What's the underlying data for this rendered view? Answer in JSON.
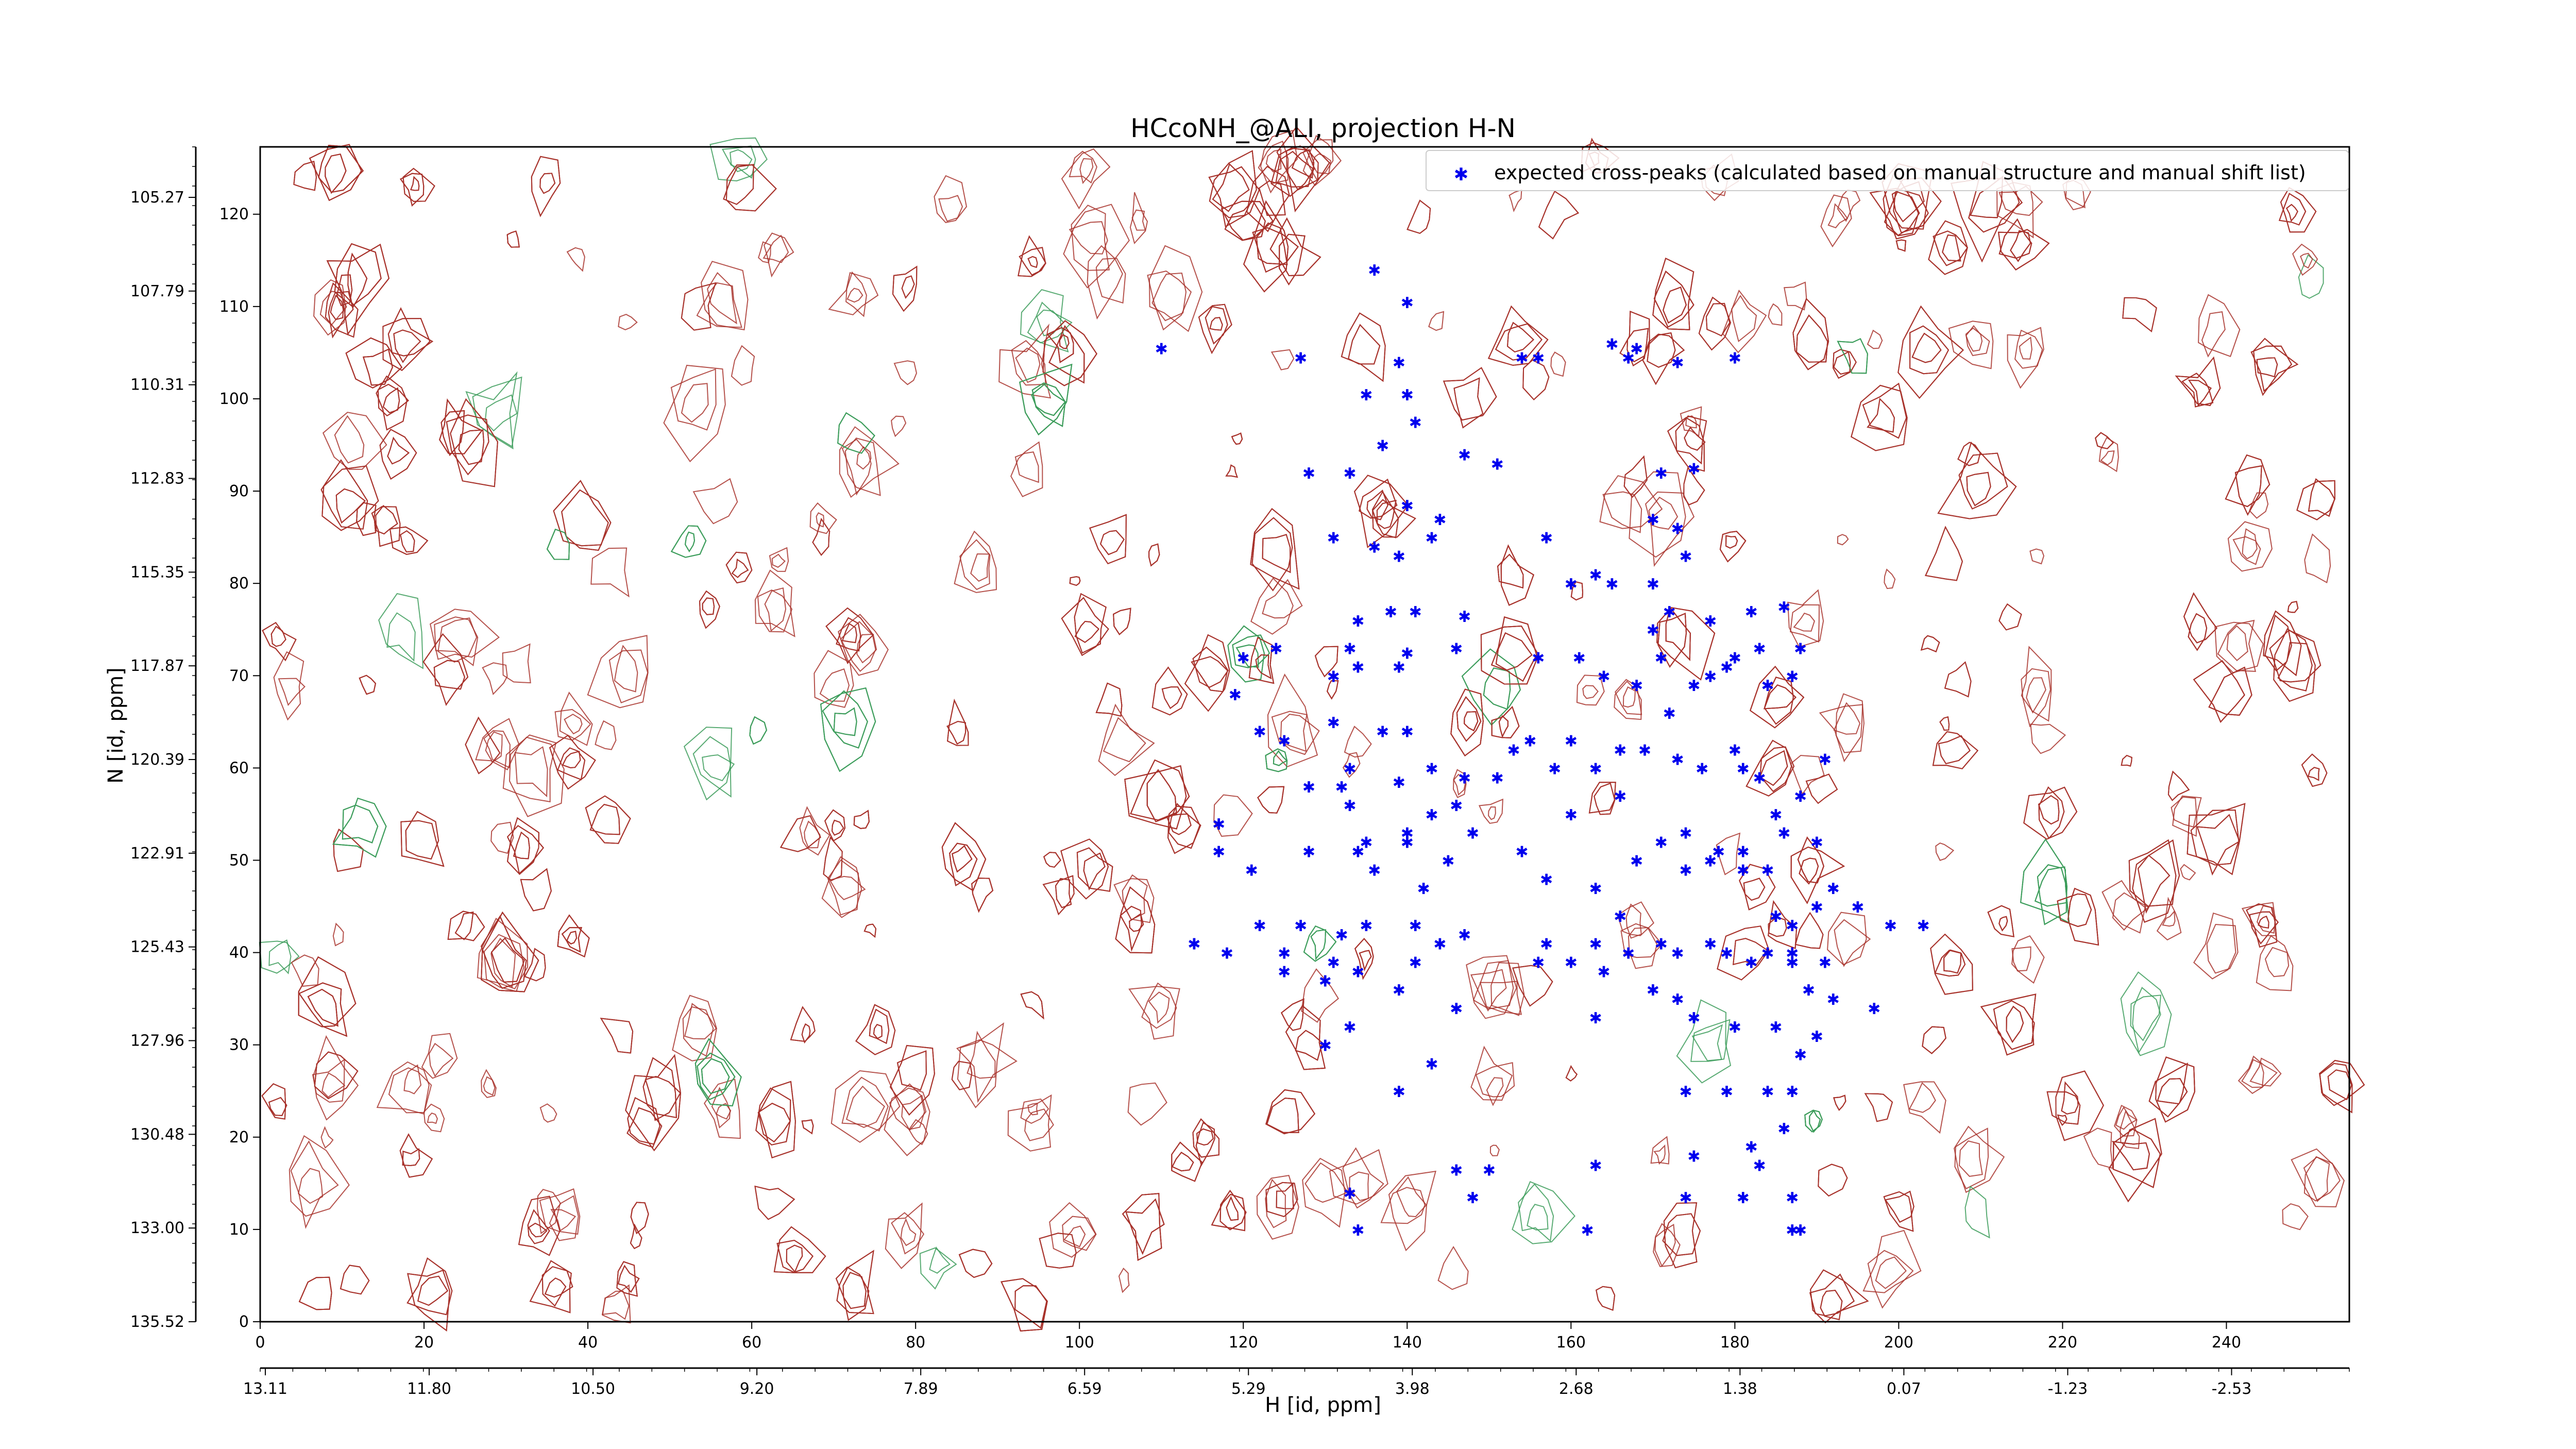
{
  "chart_data": {
    "type": "scatter",
    "title": "HCcoNH_@ALI, projection H-N",
    "xlabel": "H [id, ppm]",
    "ylabel": "N [id, ppm]",
    "xlim": [
      0,
      255
    ],
    "ylim": [
      0,
      125
    ],
    "x_ticks": [
      "0",
      "20",
      "40",
      "60",
      "80",
      "100",
      "120",
      "140",
      "160",
      "180",
      "200",
      "220",
      "240"
    ],
    "y_ticks": [
      "0",
      "10",
      "20",
      "30",
      "40",
      "50",
      "60",
      "70",
      "80",
      "90",
      "100",
      "110",
      "120"
    ],
    "x_ppm_ticks": [
      "13.11",
      "11.80",
      "10.50",
      "9.20",
      "7.89",
      "6.59",
      "5.29",
      "3.98",
      "2.68",
      "1.38",
      "0.07",
      "-1.23",
      "-2.53"
    ],
    "y_ppm_ticks": [
      "135.52",
      "133.00",
      "130.48",
      "127.96",
      "125.43",
      "122.91",
      "120.39",
      "117.87",
      "115.35",
      "112.83",
      "110.31",
      "107.79",
      "105.27"
    ],
    "legend": {
      "placement": "top-right",
      "marker_color": "#0000ee"
    },
    "series": [
      {
        "name": "expected cross-peaks (calculated based on manual structure and manual shift list)",
        "color": "#0000ee",
        "points": [
          [
            136,
            114
          ],
          [
            140,
            110.5
          ],
          [
            110,
            105.5
          ],
          [
            127,
            104.5
          ],
          [
            139,
            104
          ],
          [
            135,
            100.5
          ],
          [
            140,
            100.5
          ],
          [
            141,
            97.5
          ],
          [
            137,
            95
          ],
          [
            128,
            92
          ],
          [
            147,
            94
          ],
          [
            151,
            93
          ],
          [
            156,
            104.5
          ],
          [
            154,
            104.5
          ],
          [
            165,
            106
          ],
          [
            168,
            105.5
          ],
          [
            167,
            104.5
          ],
          [
            173,
            104
          ],
          [
            180,
            104.5
          ],
          [
            171,
            92
          ],
          [
            175,
            92.5
          ],
          [
            133,
            92
          ],
          [
            140,
            88.5
          ],
          [
            144,
            87
          ],
          [
            143,
            85
          ],
          [
            131,
            85
          ],
          [
            136,
            84
          ],
          [
            139,
            83
          ],
          [
            157,
            85
          ],
          [
            163,
            81
          ],
          [
            160,
            80
          ],
          [
            170,
            87
          ],
          [
            173,
            86
          ],
          [
            174,
            83
          ],
          [
            170,
            80
          ],
          [
            165,
            80
          ],
          [
            170,
            75
          ],
          [
            172,
            77
          ],
          [
            182,
            77
          ],
          [
            186,
            77.5
          ],
          [
            177,
            76
          ],
          [
            183,
            73
          ],
          [
            179,
            71
          ],
          [
            134,
            76
          ],
          [
            133,
            73
          ],
          [
            138,
            77
          ],
          [
            141,
            77
          ],
          [
            147,
            76.5
          ],
          [
            146,
            73
          ],
          [
            140,
            72.5
          ],
          [
            156,
            72
          ],
          [
            161,
            72
          ],
          [
            164,
            70
          ],
          [
            171,
            72
          ],
          [
            168,
            69
          ],
          [
            172,
            66
          ],
          [
            175,
            69
          ],
          [
            180,
            72
          ],
          [
            187,
            70
          ],
          [
            188,
            73
          ],
          [
            184,
            69
          ],
          [
            177,
            70
          ],
          [
            119,
            68
          ],
          [
            120,
            72
          ],
          [
            124,
            73
          ],
          [
            122,
            64
          ],
          [
            125,
            63
          ],
          [
            131,
            70
          ],
          [
            134,
            71
          ],
          [
            139,
            71
          ],
          [
            137,
            64
          ],
          [
            131,
            65
          ],
          [
            140,
            64
          ],
          [
            133,
            60
          ],
          [
            128,
            58
          ],
          [
            132,
            58
          ],
          [
            139,
            58.5
          ],
          [
            143,
            60
          ],
          [
            147,
            59
          ],
          [
            151,
            59
          ],
          [
            153,
            62
          ],
          [
            155,
            63
          ],
          [
            158,
            60
          ],
          [
            160,
            63
          ],
          [
            163,
            60
          ],
          [
            166,
            62
          ],
          [
            169,
            62
          ],
          [
            173,
            61
          ],
          [
            176,
            60
          ],
          [
            180,
            62
          ],
          [
            181,
            60
          ],
          [
            183,
            59
          ],
          [
            191,
            61
          ],
          [
            188,
            57
          ],
          [
            185,
            55
          ],
          [
            133,
            56
          ],
          [
            135,
            52
          ],
          [
            140,
            53
          ],
          [
            143,
            55
          ],
          [
            148,
            53
          ],
          [
            146,
            56
          ],
          [
            154,
            51
          ],
          [
            160,
            55
          ],
          [
            166,
            57
          ],
          [
            171,
            52
          ],
          [
            174,
            53
          ],
          [
            177,
            50
          ],
          [
            181,
            51
          ],
          [
            184,
            49
          ],
          [
            186,
            53
          ],
          [
            190,
            52
          ],
          [
            192,
            47
          ],
          [
            195,
            45
          ],
          [
            117,
            51
          ],
          [
            117,
            54
          ],
          [
            121,
            49
          ],
          [
            128,
            51
          ],
          [
            134,
            51
          ],
          [
            136,
            49
          ],
          [
            142,
            47
          ],
          [
            140,
            52
          ],
          [
            145,
            50
          ],
          [
            157,
            48
          ],
          [
            163,
            47
          ],
          [
            166,
            44
          ],
          [
            168,
            50
          ],
          [
            174,
            49
          ],
          [
            178,
            51
          ],
          [
            181,
            49
          ],
          [
            185,
            44
          ],
          [
            187,
            43
          ],
          [
            190,
            45
          ],
          [
            184,
            40
          ],
          [
            187,
            40
          ],
          [
            191,
            39
          ],
          [
            114,
            41
          ],
          [
            122,
            43
          ],
          [
            125,
            40
          ],
          [
            127,
            43
          ],
          [
            132,
            42
          ],
          [
            135,
            43
          ],
          [
            141,
            43
          ],
          [
            144,
            41
          ],
          [
            147,
            42
          ],
          [
            157,
            41
          ],
          [
            160,
            39
          ],
          [
            163,
            41
          ],
          [
            167,
            40
          ],
          [
            171,
            41
          ],
          [
            173,
            40
          ],
          [
            177,
            41
          ],
          [
            179,
            40
          ],
          [
            182,
            39
          ],
          [
            187,
            39
          ],
          [
            189,
            36
          ],
          [
            192,
            35
          ],
          [
            197,
            34
          ],
          [
            199,
            43
          ],
          [
            203,
            43
          ],
          [
            114,
            41
          ],
          [
            118,
            40
          ],
          [
            125,
            38
          ],
          [
            130,
            37
          ],
          [
            131,
            39
          ],
          [
            134,
            38
          ],
          [
            139,
            36
          ],
          [
            141,
            39
          ],
          [
            146,
            34
          ],
          [
            164,
            38
          ],
          [
            170,
            36
          ],
          [
            173,
            35
          ],
          [
            175,
            33
          ],
          [
            180,
            32
          ],
          [
            185,
            32
          ],
          [
            190,
            31
          ],
          [
            188,
            29
          ],
          [
            130,
            30
          ],
          [
            133,
            32
          ],
          [
            143,
            28
          ],
          [
            174,
            25
          ],
          [
            179,
            25
          ],
          [
            184,
            25
          ],
          [
            187,
            25
          ],
          [
            139,
            25
          ],
          [
            182,
            19
          ],
          [
            186,
            21
          ],
          [
            175,
            18
          ],
          [
            183,
            17
          ],
          [
            163,
            17
          ],
          [
            150,
            16.5
          ],
          [
            146,
            16.5
          ],
          [
            133,
            14
          ],
          [
            148,
            13.5
          ],
          [
            174,
            13.5
          ],
          [
            181,
            13.5
          ],
          [
            187,
            13.5
          ],
          [
            134,
            10
          ],
          [
            162,
            10
          ],
          [
            188,
            10
          ],
          [
            187,
            10
          ],
          [
            156,
            39
          ],
          [
            163,
            33
          ]
        ]
      }
    ]
  }
}
